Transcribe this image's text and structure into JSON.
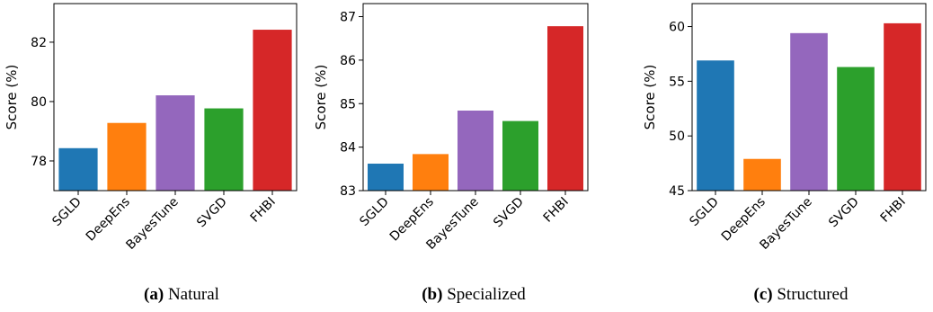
{
  "chart_data": [
    {
      "type": "bar",
      "caption_label": "(a)",
      "caption_text": "Natural",
      "ylabel": "Score (%)",
      "categories": [
        "SGLD",
        "DeepEns",
        "BayesTune",
        "SVGD",
        "FHBI"
      ],
      "values": [
        78.43,
        79.28,
        80.21,
        79.77,
        82.42
      ],
      "colors": [
        "#1f77b4",
        "#ff7f0e",
        "#9467bd",
        "#2ca02c",
        "#d62728"
      ],
      "ylim": [
        77,
        83.3
      ],
      "yticks": [
        78,
        80,
        82
      ]
    },
    {
      "type": "bar",
      "caption_label": "(b)",
      "caption_text": "Specialized",
      "ylabel": "Score (%)",
      "categories": [
        "SGLD",
        "DeepEns",
        "BayesTune",
        "SVGD",
        "FHBI"
      ],
      "values": [
        83.62,
        83.84,
        84.84,
        84.6,
        86.78
      ],
      "colors": [
        "#1f77b4",
        "#ff7f0e",
        "#9467bd",
        "#2ca02c",
        "#d62728"
      ],
      "ylim": [
        83,
        87.3
      ],
      "yticks": [
        83,
        84,
        85,
        86,
        87
      ]
    },
    {
      "type": "bar",
      "caption_label": "(c)",
      "caption_text": "Structured",
      "ylabel": "Score (%)",
      "categories": [
        "SGLD",
        "DeepEns",
        "BayesTune",
        "SVGD",
        "FHBI"
      ],
      "values": [
        56.9,
        47.9,
        59.4,
        56.3,
        60.3
      ],
      "colors": [
        "#1f77b4",
        "#ff7f0e",
        "#9467bd",
        "#2ca02c",
        "#d62728"
      ],
      "ylim": [
        45,
        62.1
      ],
      "yticks": [
        45,
        50,
        55,
        60
      ]
    }
  ]
}
